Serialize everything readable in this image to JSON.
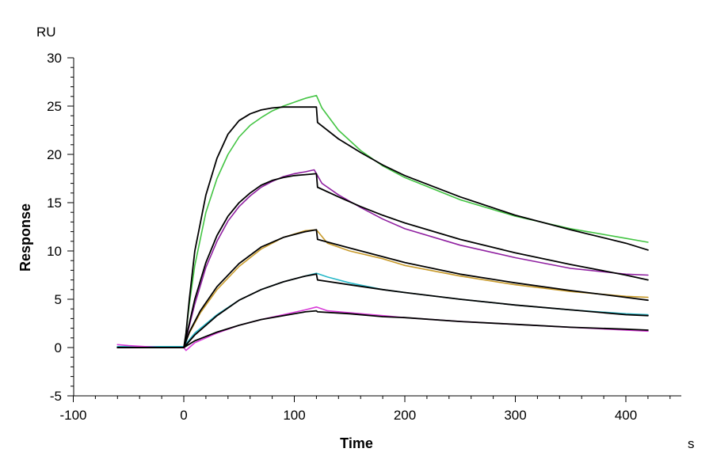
{
  "chart_data": {
    "type": "line",
    "title": "",
    "xlabel": "Time",
    "ylabel": "Response",
    "x_unit": "s",
    "y_unit": "RU",
    "xlim": [
      -100,
      450
    ],
    "ylim": [
      -5,
      30
    ],
    "x_ticks": [
      -100,
      0,
      100,
      200,
      300,
      400
    ],
    "y_ticks": [
      -5,
      0,
      5,
      10,
      15,
      20,
      25,
      30
    ],
    "grid": false,
    "legend": "none",
    "series": [
      {
        "color": "#43c443",
        "role": "measured",
        "points": [
          [
            -60,
            0.1
          ],
          [
            0,
            0.1
          ],
          [
            1,
            0.5
          ],
          [
            5,
            4.5
          ],
          [
            10,
            8.5
          ],
          [
            20,
            14.0
          ],
          [
            30,
            17.5
          ],
          [
            40,
            20.0
          ],
          [
            50,
            21.8
          ],
          [
            60,
            23.0
          ],
          [
            70,
            23.8
          ],
          [
            80,
            24.5
          ],
          [
            90,
            25.0
          ],
          [
            100,
            25.4
          ],
          [
            110,
            25.8
          ],
          [
            120,
            26.1
          ],
          [
            125,
            24.8
          ],
          [
            140,
            22.5
          ],
          [
            160,
            20.4
          ],
          [
            180,
            18.8
          ],
          [
            200,
            17.6
          ],
          [
            250,
            15.3
          ],
          [
            300,
            13.6
          ],
          [
            350,
            12.3
          ],
          [
            400,
            11.3
          ],
          [
            420,
            10.9
          ]
        ]
      },
      {
        "color": "#000000",
        "role": "fit",
        "points": [
          [
            -60,
            0
          ],
          [
            0,
            0
          ],
          [
            2,
            1.5
          ],
          [
            5,
            5.0
          ],
          [
            10,
            10.0
          ],
          [
            20,
            15.8
          ],
          [
            30,
            19.6
          ],
          [
            40,
            22.1
          ],
          [
            50,
            23.5
          ],
          [
            60,
            24.2
          ],
          [
            70,
            24.6
          ],
          [
            80,
            24.8
          ],
          [
            90,
            24.9
          ],
          [
            100,
            24.9
          ],
          [
            120,
            24.9
          ],
          [
            121,
            23.3
          ],
          [
            140,
            21.6
          ],
          [
            160,
            20.2
          ],
          [
            180,
            18.9
          ],
          [
            200,
            17.8
          ],
          [
            250,
            15.6
          ],
          [
            300,
            13.7
          ],
          [
            350,
            12.2
          ],
          [
            400,
            10.8
          ],
          [
            420,
            10.1
          ]
        ]
      },
      {
        "color": "#8f1fa0",
        "role": "measured",
        "points": [
          [
            -60,
            0
          ],
          [
            0,
            0
          ],
          [
            2,
            0.9
          ],
          [
            10,
            4.5
          ],
          [
            20,
            8.3
          ],
          [
            30,
            11.0
          ],
          [
            40,
            13.1
          ],
          [
            50,
            14.6
          ],
          [
            60,
            15.7
          ],
          [
            70,
            16.6
          ],
          [
            80,
            17.2
          ],
          [
            90,
            17.7
          ],
          [
            100,
            18.0
          ],
          [
            110,
            18.2
          ],
          [
            118,
            18.4
          ],
          [
            125,
            17.0
          ],
          [
            140,
            15.8
          ],
          [
            160,
            14.5
          ],
          [
            180,
            13.3
          ],
          [
            200,
            12.3
          ],
          [
            250,
            10.6
          ],
          [
            300,
            9.3
          ],
          [
            350,
            8.2
          ],
          [
            400,
            7.6
          ],
          [
            420,
            7.5
          ]
        ]
      },
      {
        "color": "#000000",
        "role": "fit",
        "points": [
          [
            -60,
            0
          ],
          [
            0,
            0
          ],
          [
            2,
            1.0
          ],
          [
            10,
            5.0
          ],
          [
            20,
            8.8
          ],
          [
            30,
            11.6
          ],
          [
            40,
            13.6
          ],
          [
            50,
            15.0
          ],
          [
            60,
            16.0
          ],
          [
            70,
            16.8
          ],
          [
            80,
            17.3
          ],
          [
            90,
            17.6
          ],
          [
            100,
            17.8
          ],
          [
            110,
            17.9
          ],
          [
            120,
            18.0
          ],
          [
            121,
            16.6
          ],
          [
            140,
            15.6
          ],
          [
            160,
            14.6
          ],
          [
            180,
            13.7
          ],
          [
            200,
            12.9
          ],
          [
            250,
            11.2
          ],
          [
            300,
            9.8
          ],
          [
            350,
            8.6
          ],
          [
            400,
            7.5
          ],
          [
            420,
            7.0
          ]
        ]
      },
      {
        "color": "#c89a2a",
        "role": "measured",
        "points": [
          [
            -60,
            0.1
          ],
          [
            0,
            0.1
          ],
          [
            5,
            1.5
          ],
          [
            15,
            3.6
          ],
          [
            30,
            6.0
          ],
          [
            50,
            8.4
          ],
          [
            70,
            10.2
          ],
          [
            90,
            11.4
          ],
          [
            110,
            12.1
          ],
          [
            120,
            12.2
          ],
          [
            130,
            10.8
          ],
          [
            150,
            10.0
          ],
          [
            180,
            9.2
          ],
          [
            200,
            8.5
          ],
          [
            250,
            7.4
          ],
          [
            300,
            6.5
          ],
          [
            350,
            5.8
          ],
          [
            400,
            5.3
          ],
          [
            420,
            5.2
          ]
        ]
      },
      {
        "color": "#000000",
        "role": "fit",
        "points": [
          [
            -60,
            0
          ],
          [
            0,
            0
          ],
          [
            5,
            1.6
          ],
          [
            15,
            3.8
          ],
          [
            30,
            6.3
          ],
          [
            50,
            8.7
          ],
          [
            70,
            10.4
          ],
          [
            90,
            11.4
          ],
          [
            110,
            12.0
          ],
          [
            120,
            12.2
          ],
          [
            121,
            11.2
          ],
          [
            150,
            10.3
          ],
          [
            180,
            9.4
          ],
          [
            200,
            8.8
          ],
          [
            250,
            7.6
          ],
          [
            300,
            6.7
          ],
          [
            350,
            5.9
          ],
          [
            400,
            5.2
          ],
          [
            420,
            4.9
          ]
        ]
      },
      {
        "color": "#27b8c8",
        "role": "measured",
        "points": [
          [
            -60,
            0.1
          ],
          [
            0,
            0.1
          ],
          [
            10,
            1.5
          ],
          [
            30,
            3.4
          ],
          [
            50,
            4.9
          ],
          [
            70,
            6.0
          ],
          [
            90,
            6.8
          ],
          [
            110,
            7.4
          ],
          [
            120,
            7.7
          ],
          [
            130,
            7.3
          ],
          [
            150,
            6.7
          ],
          [
            180,
            6.0
          ],
          [
            200,
            5.7
          ],
          [
            250,
            5.0
          ],
          [
            300,
            4.4
          ],
          [
            350,
            3.9
          ],
          [
            400,
            3.5
          ],
          [
            420,
            3.4
          ]
        ]
      },
      {
        "color": "#000000",
        "role": "fit",
        "points": [
          [
            -60,
            0
          ],
          [
            0,
            0
          ],
          [
            10,
            1.3
          ],
          [
            30,
            3.3
          ],
          [
            50,
            4.9
          ],
          [
            70,
            6.0
          ],
          [
            90,
            6.8
          ],
          [
            110,
            7.4
          ],
          [
            120,
            7.6
          ],
          [
            121,
            7.0
          ],
          [
            150,
            6.5
          ],
          [
            180,
            6.0
          ],
          [
            200,
            5.7
          ],
          [
            250,
            5.0
          ],
          [
            300,
            4.4
          ],
          [
            350,
            3.9
          ],
          [
            400,
            3.4
          ],
          [
            420,
            3.3
          ]
        ]
      },
      {
        "color": "#d83ad8",
        "role": "measured",
        "points": [
          [
            -60,
            0.3
          ],
          [
            -50,
            0.2
          ],
          [
            -20,
            0
          ],
          [
            0,
            0
          ],
          [
            2,
            -0.3
          ],
          [
            10,
            0.5
          ],
          [
            30,
            1.5
          ],
          [
            50,
            2.3
          ],
          [
            70,
            2.9
          ],
          [
            90,
            3.4
          ],
          [
            110,
            3.9
          ],
          [
            120,
            4.2
          ],
          [
            130,
            3.8
          ],
          [
            150,
            3.6
          ],
          [
            180,
            3.3
          ],
          [
            200,
            3.1
          ],
          [
            250,
            2.7
          ],
          [
            300,
            2.4
          ],
          [
            350,
            2.1
          ],
          [
            400,
            1.8
          ],
          [
            420,
            1.7
          ]
        ]
      },
      {
        "color": "#000000",
        "role": "fit",
        "points": [
          [
            -60,
            0
          ],
          [
            0,
            0
          ],
          [
            10,
            0.7
          ],
          [
            30,
            1.6
          ],
          [
            50,
            2.3
          ],
          [
            70,
            2.9
          ],
          [
            90,
            3.3
          ],
          [
            110,
            3.7
          ],
          [
            120,
            3.8
          ],
          [
            121,
            3.7
          ],
          [
            150,
            3.5
          ],
          [
            180,
            3.2
          ],
          [
            200,
            3.1
          ],
          [
            250,
            2.7
          ],
          [
            300,
            2.4
          ],
          [
            350,
            2.1
          ],
          [
            400,
            1.9
          ],
          [
            420,
            1.8
          ]
        ]
      }
    ]
  }
}
